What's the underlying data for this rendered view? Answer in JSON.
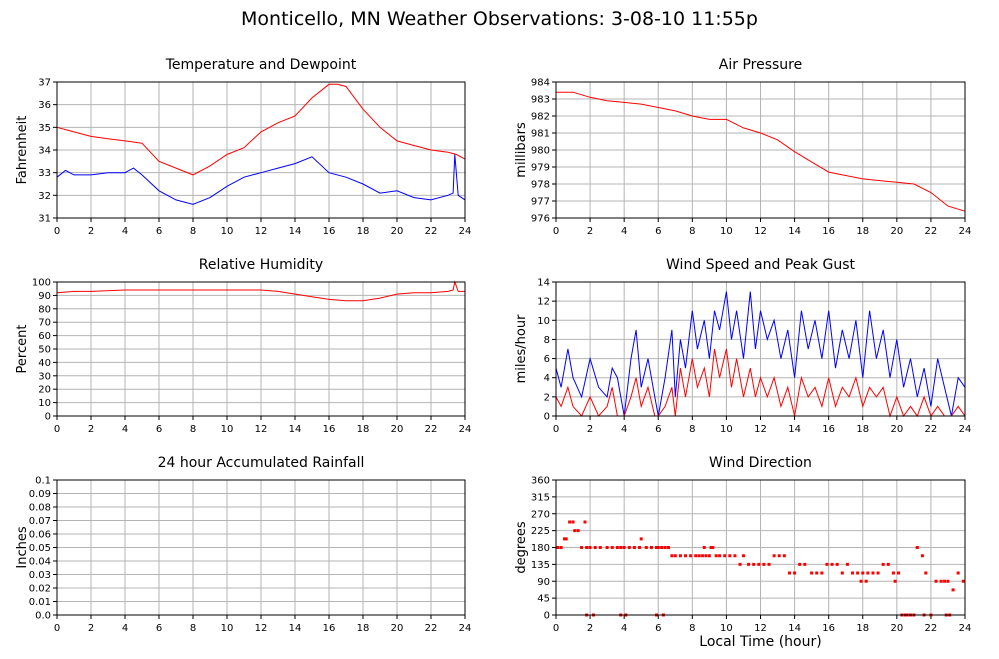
{
  "page": {
    "title": "Monticello, MN Weather Observations: 3-08-10 11:55p",
    "x_caption": "Local Time (hour)"
  },
  "chart_data": [
    {
      "id": "temp",
      "type": "line",
      "title": "Temperature and Dewpoint",
      "ylabel": "Fahrenheit",
      "xlim": [
        0,
        24
      ],
      "ylim": [
        31,
        37
      ],
      "x_ticks": [
        0,
        2,
        4,
        6,
        8,
        10,
        12,
        14,
        16,
        18,
        20,
        22,
        24
      ],
      "y_ticks": [
        31,
        32,
        33,
        34,
        35,
        36,
        37
      ],
      "grid": true,
      "series": [
        {
          "color": "#ff0000",
          "x": [
            0,
            0.5,
            1,
            2,
            3,
            4,
            5,
            6,
            7,
            8,
            9,
            10,
            11,
            12,
            13,
            14,
            15,
            16,
            16.5,
            17,
            18,
            19,
            20,
            21,
            22,
            23,
            23.5,
            24
          ],
          "y": [
            35,
            34.9,
            34.8,
            34.6,
            34.5,
            34.4,
            34.3,
            33.5,
            33.2,
            32.9,
            33.3,
            33.8,
            34.1,
            34.8,
            35.2,
            35.5,
            36.3,
            36.9,
            36.9,
            36.8,
            35.8,
            35.0,
            34.4,
            34.2,
            34.0,
            33.9,
            33.8,
            33.6
          ]
        },
        {
          "color": "#0000ff",
          "x": [
            0,
            0.5,
            1,
            2,
            3,
            4,
            4.5,
            5,
            6,
            7,
            8,
            9,
            10,
            11,
            12,
            13,
            14,
            15,
            16,
            17,
            18,
            19,
            20,
            21,
            22,
            23,
            23.3,
            23.4,
            23.6,
            24
          ],
          "y": [
            32.8,
            33.1,
            32.9,
            32.9,
            33.0,
            33.0,
            33.2,
            32.9,
            32.2,
            31.8,
            31.6,
            31.9,
            32.4,
            32.8,
            33.0,
            33.2,
            33.4,
            33.7,
            33.0,
            32.8,
            32.5,
            32.1,
            32.2,
            31.9,
            31.8,
            32.0,
            32.1,
            33.8,
            32.0,
            31.8
          ]
        }
      ]
    },
    {
      "id": "pressure",
      "type": "line",
      "title": "Air Pressure",
      "ylabel": "millibars",
      "xlim": [
        0,
        24
      ],
      "ylim": [
        976,
        984
      ],
      "x_ticks": [
        0,
        2,
        4,
        6,
        8,
        10,
        12,
        14,
        16,
        18,
        20,
        22,
        24
      ],
      "y_ticks": [
        976,
        977,
        978,
        979,
        980,
        981,
        982,
        983,
        984
      ],
      "grid": true,
      "series": [
        {
          "color": "#ff0000",
          "x": [
            0,
            1,
            2,
            3,
            4,
            5,
            6,
            7,
            8,
            9,
            10,
            11,
            12,
            13,
            14,
            15,
            16,
            17,
            18,
            19,
            20,
            21,
            22,
            23,
            24
          ],
          "y": [
            983.4,
            983.4,
            983.1,
            982.9,
            982.8,
            982.7,
            982.5,
            982.3,
            982.0,
            981.8,
            981.8,
            981.3,
            981.0,
            980.6,
            979.9,
            979.3,
            978.7,
            978.5,
            978.3,
            978.2,
            978.1,
            978.0,
            977.5,
            976.7,
            976.4
          ]
        }
      ]
    },
    {
      "id": "humidity",
      "type": "line",
      "title": "Relative Humidity",
      "ylabel": "Percent",
      "xlim": [
        0,
        24
      ],
      "ylim": [
        0,
        100
      ],
      "x_ticks": [
        0,
        2,
        4,
        6,
        8,
        10,
        12,
        14,
        16,
        18,
        20,
        22,
        24
      ],
      "y_ticks": [
        0,
        10,
        20,
        30,
        40,
        50,
        60,
        70,
        80,
        90,
        100
      ],
      "grid": true,
      "series": [
        {
          "color": "#ff0000",
          "x": [
            0,
            1,
            2,
            4,
            6,
            8,
            10,
            12,
            13,
            14,
            15,
            16,
            17,
            18,
            19,
            20,
            21,
            22,
            23,
            23.3,
            23.4,
            23.6,
            24
          ],
          "y": [
            92,
            93,
            93,
            94,
            94,
            94,
            94,
            94,
            93,
            91,
            89,
            87,
            86,
            86,
            88,
            91,
            92,
            92,
            93,
            94,
            100,
            93,
            93
          ]
        }
      ]
    },
    {
      "id": "wind",
      "type": "line",
      "title": "Wind Speed and Peak Gust",
      "ylabel": "miles/hour",
      "xlim": [
        0,
        24
      ],
      "ylim": [
        0,
        14
      ],
      "x_ticks": [
        0,
        2,
        4,
        6,
        8,
        10,
        12,
        14,
        16,
        18,
        20,
        22,
        24
      ],
      "y_ticks": [
        0,
        2,
        4,
        6,
        8,
        10,
        12,
        14
      ],
      "grid": true,
      "series": [
        {
          "color": "#0000ff",
          "x": [
            0,
            0.3,
            0.7,
            1.0,
            1.5,
            2.0,
            2.5,
            3.0,
            3.3,
            3.6,
            4.0,
            4.4,
            4.7,
            5.0,
            5.4,
            5.8,
            6.0,
            6.4,
            6.8,
            7.0,
            7.3,
            7.6,
            8.0,
            8.3,
            8.7,
            9.0,
            9.3,
            9.6,
            10.0,
            10.3,
            10.6,
            11.0,
            11.4,
            11.7,
            12.0,
            12.4,
            12.8,
            13.2,
            13.6,
            14.0,
            14.4,
            14.8,
            15.2,
            15.6,
            16.0,
            16.4,
            16.8,
            17.2,
            17.6,
            18.0,
            18.4,
            18.8,
            19.2,
            19.6,
            20.0,
            20.4,
            20.8,
            21.2,
            21.6,
            22.0,
            22.4,
            22.8,
            23.2,
            23.6,
            24.0
          ],
          "y": [
            5,
            3,
            7,
            4,
            2,
            6,
            3,
            2,
            5,
            4,
            0,
            6,
            9,
            3,
            6,
            2,
            0,
            4,
            9,
            2,
            8,
            5,
            11,
            7,
            10,
            6,
            11,
            9,
            13,
            8,
            11,
            6,
            13,
            7,
            11,
            8,
            10,
            6,
            9,
            4,
            11,
            7,
            10,
            6,
            11,
            5,
            9,
            6,
            10,
            4,
            11,
            6,
            9,
            4,
            8,
            3,
            6,
            2,
            5,
            1,
            6,
            3,
            0,
            4,
            3
          ]
        },
        {
          "color": "#ff0000",
          "x": [
            0,
            0.3,
            0.7,
            1.0,
            1.5,
            2.0,
            2.5,
            3.0,
            3.3,
            3.6,
            4.0,
            4.4,
            4.7,
            5.0,
            5.4,
            5.8,
            6.0,
            6.4,
            6.8,
            7.0,
            7.3,
            7.6,
            8.0,
            8.3,
            8.7,
            9.0,
            9.3,
            9.6,
            10.0,
            10.3,
            10.6,
            11.0,
            11.4,
            11.7,
            12.0,
            12.4,
            12.8,
            13.2,
            13.6,
            14.0,
            14.4,
            14.8,
            15.2,
            15.6,
            16.0,
            16.4,
            16.8,
            17.2,
            17.6,
            18.0,
            18.4,
            18.8,
            19.2,
            19.6,
            20.0,
            20.4,
            20.8,
            21.2,
            21.6,
            22.0,
            22.4,
            22.8,
            23.2,
            23.6,
            24.0
          ],
          "y": [
            2,
            1,
            3,
            1,
            0,
            2,
            0,
            1,
            3,
            0,
            0,
            2,
            4,
            1,
            3,
            0,
            0,
            1,
            3,
            0,
            5,
            2,
            6,
            3,
            5,
            2,
            7,
            4,
            7,
            3,
            6,
            2,
            5,
            2,
            4,
            2,
            4,
            1,
            3,
            0,
            4,
            2,
            3,
            1,
            4,
            1,
            3,
            2,
            4,
            1,
            3,
            2,
            3,
            0,
            2,
            0,
            1,
            0,
            2,
            0,
            1,
            0,
            0,
            1,
            0
          ]
        }
      ]
    },
    {
      "id": "rain",
      "type": "line",
      "title": "24 hour Accumulated Rainfall",
      "ylabel": "Inches",
      "xlim": [
        0,
        24
      ],
      "ylim": [
        0,
        0.1
      ],
      "x_ticks": [
        0,
        2,
        4,
        6,
        8,
        10,
        12,
        14,
        16,
        18,
        20,
        22,
        24
      ],
      "y_ticks": [
        0.0,
        0.01,
        0.02,
        0.03,
        0.04,
        0.05,
        0.06,
        0.07,
        0.08,
        0.09,
        0.1
      ],
      "y_tick_labels": [
        "0.0",
        "0.01",
        "0.02",
        "0.03",
        "0.04",
        "0.05",
        "0.06",
        "0.07",
        "0.08",
        "0.09",
        "0.1"
      ],
      "grid": true,
      "series": [
        {
          "color": "#ff0000",
          "x": [
            0,
            24
          ],
          "y": [
            0,
            0
          ]
        }
      ]
    },
    {
      "id": "direction",
      "type": "scatter",
      "title": "Wind Direction",
      "ylabel": "degrees",
      "xlim": [
        0,
        24
      ],
      "ylim": [
        0,
        360
      ],
      "x_ticks": [
        0,
        2,
        4,
        6,
        8,
        10,
        12,
        14,
        16,
        18,
        20,
        22,
        24
      ],
      "y_ticks": [
        0,
        45,
        90,
        135,
        180,
        225,
        270,
        315,
        360
      ],
      "grid": true,
      "series": [
        {
          "color": "#ff0000",
          "x": [
            0.1,
            0.3,
            0.5,
            0.6,
            0.8,
            1.0,
            1.1,
            1.3,
            1.5,
            1.7,
            1.8,
            2.0,
            2.3,
            2.6,
            3.0,
            3.3,
            3.6,
            3.8,
            4.0,
            4.3,
            4.6,
            4.9,
            5.0,
            5.3,
            5.6,
            5.9,
            6.0,
            6.2,
            6.4,
            6.6,
            6.8,
            7.0,
            7.3,
            7.6,
            7.9,
            8.2,
            8.4,
            8.6,
            8.8,
            9.0,
            9.2,
            9.4,
            9.6,
            9.9,
            10.2,
            10.5,
            10.8,
            11.0,
            11.3,
            11.6,
            11.9,
            12.2,
            12.5,
            12.8,
            13.1,
            13.4,
            13.7,
            14.0,
            14.3,
            14.6,
            15.0,
            15.3,
            15.6,
            15.9,
            16.2,
            16.5,
            16.8,
            17.1,
            17.4,
            17.7,
            18.0,
            18.3,
            18.6,
            18.9,
            19.2,
            19.5,
            19.8,
            20.1,
            20.3,
            20.6,
            20.8,
            21.0,
            21.2,
            21.5,
            21.7,
            22.0,
            22.3,
            22.6,
            22.8,
            23.0,
            23.3,
            23.6,
            23.9,
            1.8,
            2.2,
            3.8,
            4.1,
            5.9,
            6.3,
            20.5,
            21.6,
            22.9,
            23.1,
            17.9,
            18.2,
            19.9,
            9.1,
            8.7
          ],
          "y": [
            180,
            180,
            203,
            203,
            248,
            248,
            225,
            225,
            180,
            248,
            180,
            180,
            180,
            180,
            180,
            180,
            180,
            180,
            180,
            180,
            180,
            180,
            203,
            180,
            180,
            180,
            180,
            180,
            180,
            180,
            158,
            158,
            158,
            158,
            158,
            158,
            158,
            158,
            158,
            158,
            180,
            158,
            158,
            158,
            158,
            158,
            135,
            158,
            135,
            135,
            135,
            135,
            135,
            158,
            158,
            158,
            112,
            112,
            135,
            135,
            112,
            112,
            112,
            135,
            135,
            135,
            112,
            135,
            112,
            112,
            112,
            112,
            112,
            112,
            135,
            135,
            112,
            112,
            0,
            0,
            0,
            0,
            180,
            158,
            112,
            0,
            90,
            90,
            90,
            90,
            67,
            112,
            90,
            0,
            0,
            0,
            0,
            0,
            0,
            0,
            0,
            0,
            0,
            90,
            90,
            90,
            180,
            180
          ]
        }
      ]
    }
  ]
}
